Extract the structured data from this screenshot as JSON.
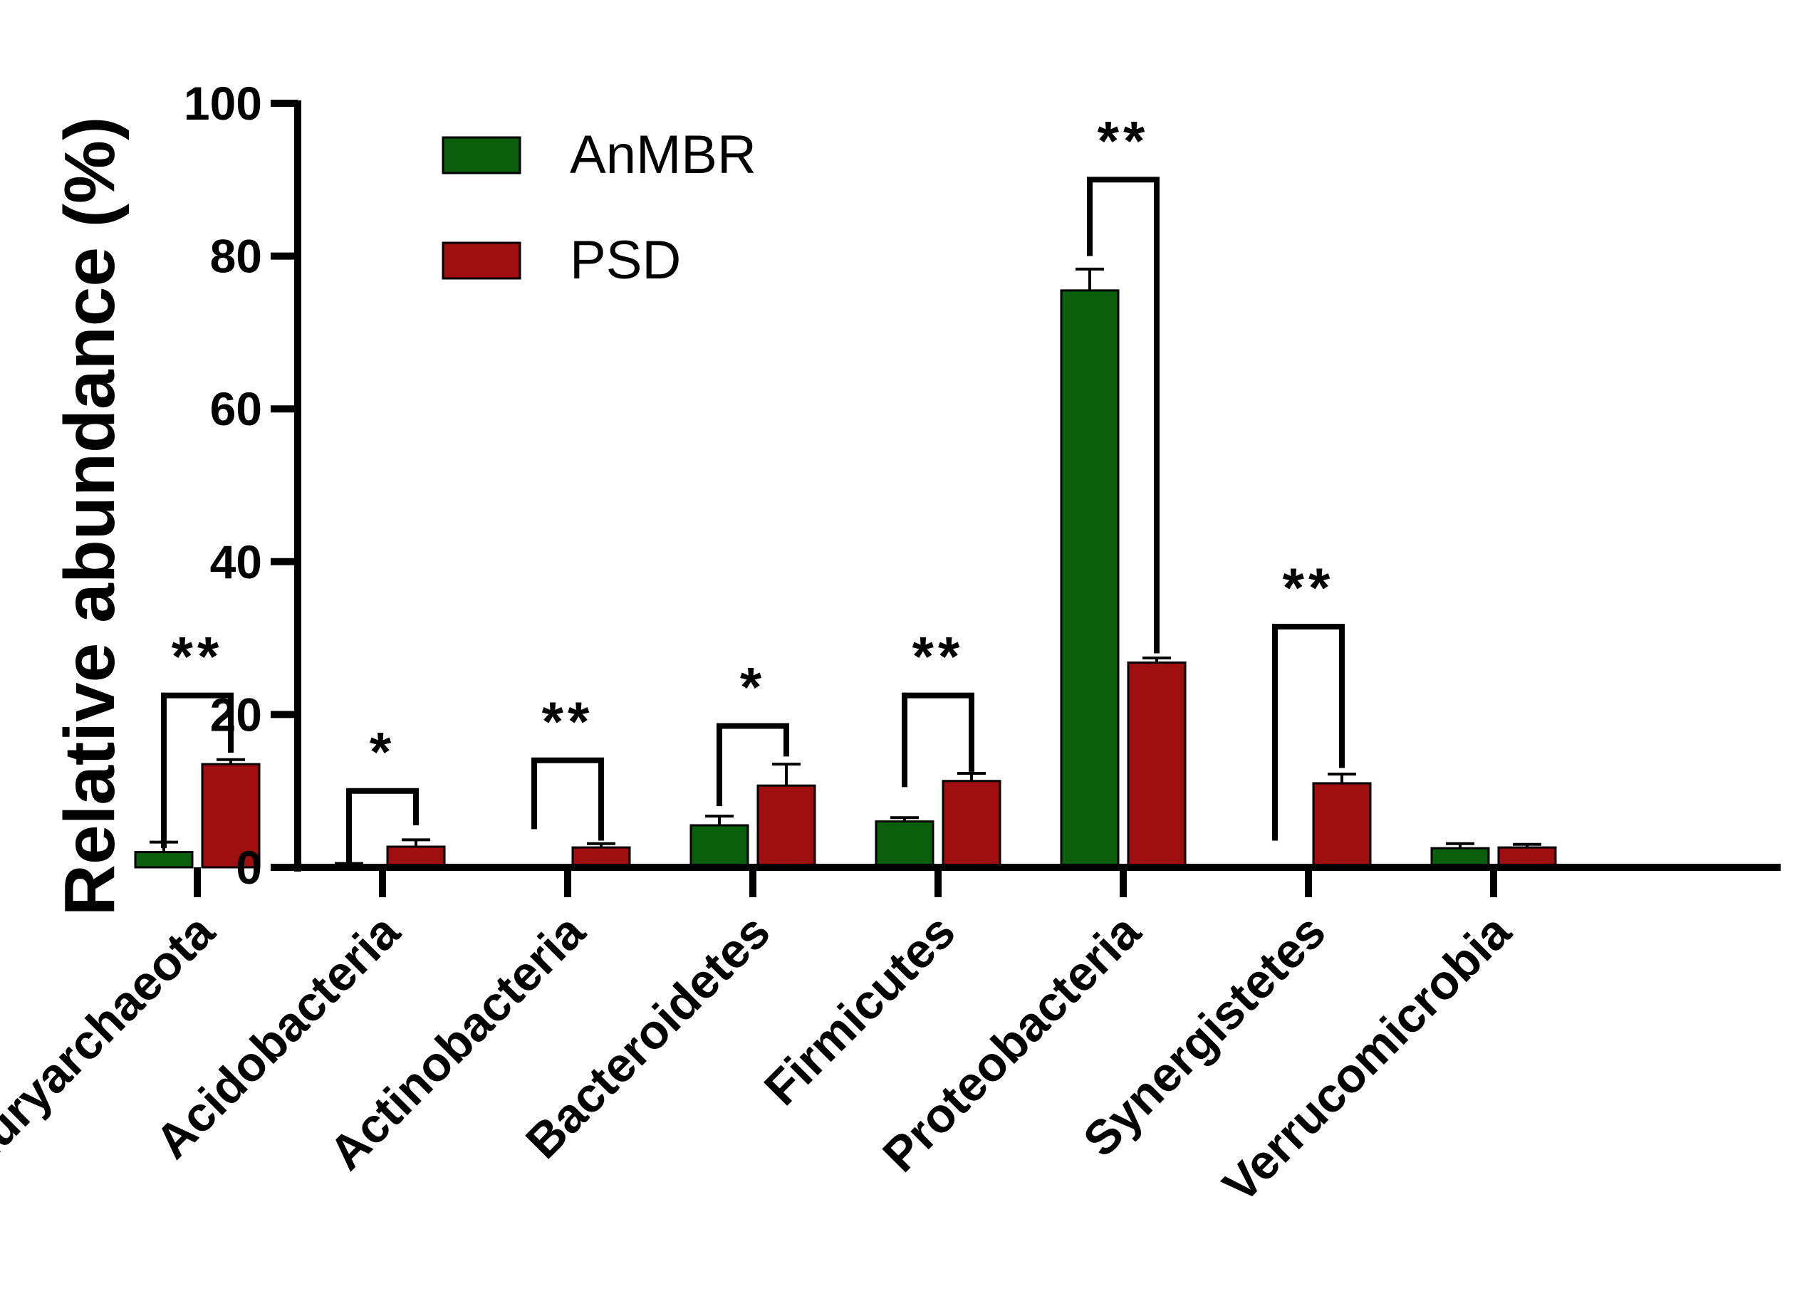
{
  "chart_data": {
    "type": "bar",
    "title": "",
    "xlabel": "",
    "ylabel": "Relative abundance (%)",
    "ylim": [
      0,
      100
    ],
    "yticks": [
      0,
      20,
      40,
      60,
      80,
      100
    ],
    "yticks_labels": [
      "0",
      "20",
      "40",
      "60",
      "80",
      "100"
    ],
    "categories": [
      "Euryarchaeota",
      "Acidobacteria",
      "Actinobacteria",
      "Bacteroidetes",
      "Firmicutes",
      "Proteobacteria",
      "Synergistetes",
      "Verrucomicrobia"
    ],
    "series": [
      {
        "name": "AnMBR",
        "color": "#0b5e0b",
        "values": [
          2.0,
          0.3,
          0.0,
          5.5,
          6.0,
          75.5,
          0.0,
          2.5
        ],
        "errors": [
          1.3,
          0.2,
          0.0,
          1.2,
          0.5,
          2.8,
          0.0,
          0.6
        ]
      },
      {
        "name": "PSD",
        "color": "#a00f0f",
        "values": [
          13.5,
          2.7,
          2.6,
          10.7,
          11.3,
          26.8,
          11.0,
          2.6
        ],
        "errors": [
          0.6,
          0.9,
          0.5,
          2.8,
          1.0,
          0.6,
          1.2,
          0.4
        ]
      }
    ],
    "legend": {
      "position": "top-left",
      "entries": [
        "AnMBR",
        "PSD"
      ]
    },
    "significance": [
      {
        "category": "Euryarchaeota",
        "label": "**",
        "level": 22.5,
        "left_end": 2.5,
        "right_end": 15.0
      },
      {
        "category": "Acidobacteria",
        "label": "*",
        "level": 10.0,
        "left_end": 0.5,
        "right_end": 5.5
      },
      {
        "category": "Actinobacteria",
        "label": "**",
        "level": 14.0,
        "left_end": 5.0,
        "right_end": 3.5
      },
      {
        "category": "Bacteroidetes",
        "label": "*",
        "level": 18.5,
        "left_end": 8.0,
        "right_end": 14.5
      },
      {
        "category": "Firmicutes",
        "label": "**",
        "level": 22.5,
        "left_end": 10.5,
        "right_end": 12.5
      },
      {
        "category": "Proteobacteria",
        "label": "**",
        "level": 90.0,
        "left_end": 80.0,
        "right_end": 28.0
      },
      {
        "category": "Synergistetes",
        "label": "**",
        "level": 31.5,
        "left_end": 3.5,
        "right_end": 13.0
      }
    ]
  }
}
